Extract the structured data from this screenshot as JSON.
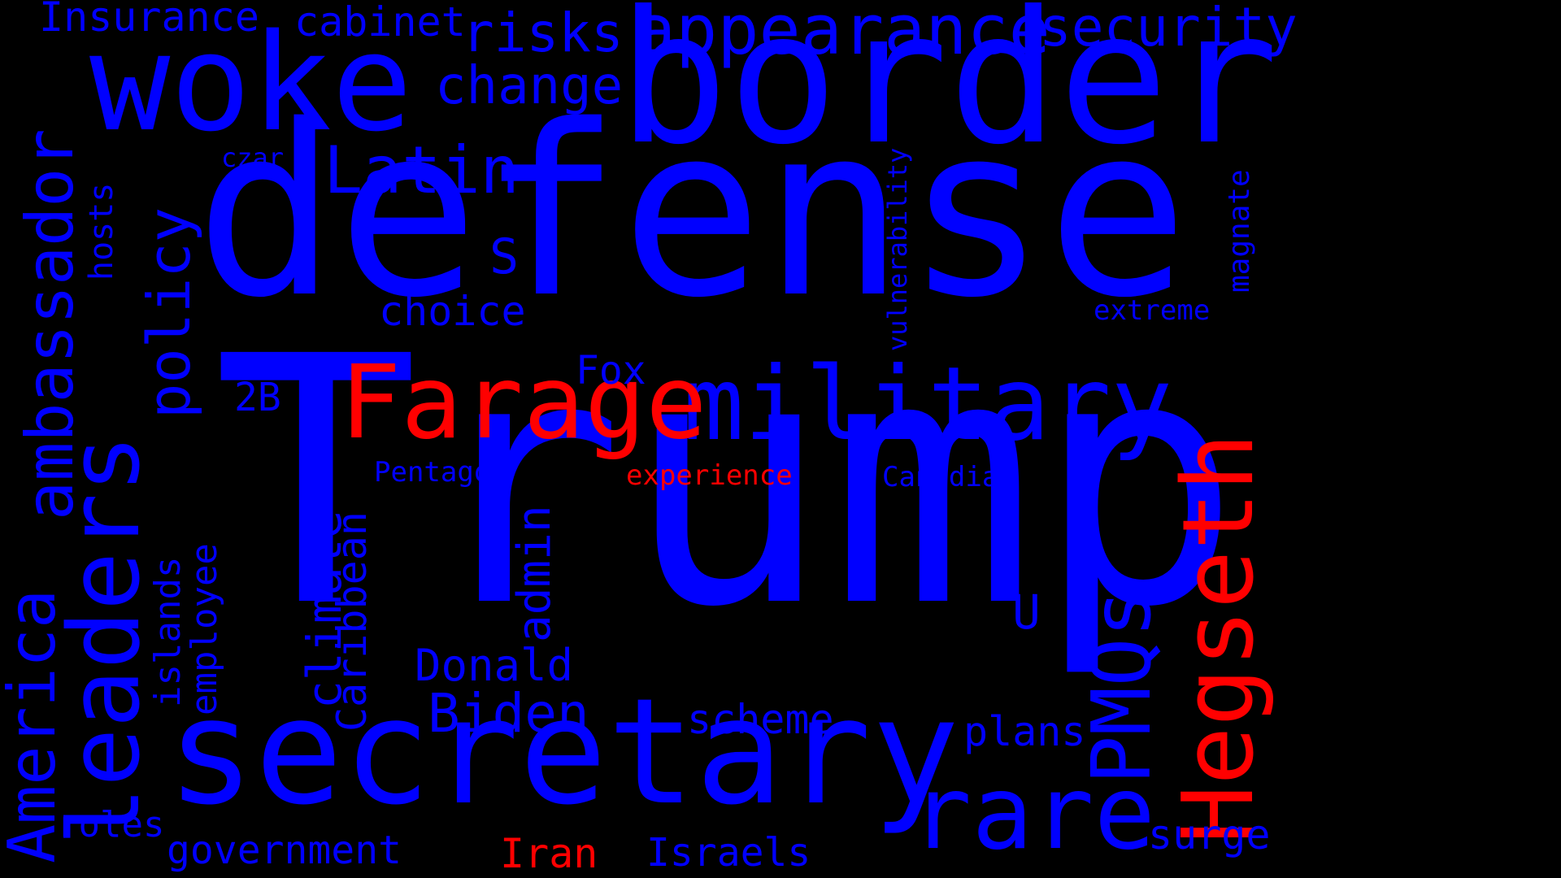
{
  "colors": {
    "background": "#000000",
    "blue": "#0000ff",
    "red": "#ff0000"
  },
  "words": [
    {
      "text": "Trump",
      "color": "blue"
    },
    {
      "text": "defense",
      "color": "blue"
    },
    {
      "text": "border",
      "color": "blue"
    },
    {
      "text": "secretary",
      "color": "blue"
    },
    {
      "text": "woke",
      "color": "blue"
    },
    {
      "text": "leaders",
      "color": "blue"
    },
    {
      "text": "military",
      "color": "blue"
    },
    {
      "text": "Farage",
      "color": "red"
    },
    {
      "text": "Hegseth",
      "color": "red"
    },
    {
      "text": "rare",
      "color": "blue"
    },
    {
      "text": "PMQs",
      "color": "blue"
    },
    {
      "text": "appearance",
      "color": "blue"
    },
    {
      "text": "America",
      "color": "blue"
    },
    {
      "text": "ambassador",
      "color": "blue"
    },
    {
      "text": "policy",
      "color": "blue"
    },
    {
      "text": "Latin",
      "color": "blue"
    },
    {
      "text": "security",
      "color": "blue"
    },
    {
      "text": "risks",
      "color": "blue"
    },
    {
      "text": "change",
      "color": "blue"
    },
    {
      "text": "Insurance",
      "color": "blue"
    },
    {
      "text": "cabinet",
      "color": "blue"
    },
    {
      "text": "climate",
      "color": "blue"
    },
    {
      "text": "Biden",
      "color": "blue"
    },
    {
      "text": "Donald",
      "color": "blue"
    },
    {
      "text": "admin",
      "color": "blue"
    },
    {
      "text": "Caribbean",
      "color": "blue"
    },
    {
      "text": "islands",
      "color": "blue"
    },
    {
      "text": "employee",
      "color": "blue"
    },
    {
      "text": "government",
      "color": "blue"
    },
    {
      "text": "Israels",
      "color": "blue"
    },
    {
      "text": "Iran",
      "color": "red"
    },
    {
      "text": "scheme",
      "color": "blue"
    },
    {
      "text": "plans",
      "color": "blue"
    },
    {
      "text": "surge",
      "color": "blue"
    },
    {
      "text": "choice",
      "color": "blue"
    },
    {
      "text": "Fox",
      "color": "blue"
    },
    {
      "text": "2B",
      "color": "blue"
    },
    {
      "text": "S",
      "color": "blue"
    },
    {
      "text": "U",
      "color": "blue"
    },
    {
      "text": "roles",
      "color": "blue"
    },
    {
      "text": "hosts",
      "color": "blue"
    },
    {
      "text": "czar",
      "color": "blue"
    },
    {
      "text": "magnate",
      "color": "blue"
    },
    {
      "text": "extreme",
      "color": "blue"
    },
    {
      "text": "vulnerability",
      "color": "blue"
    },
    {
      "text": "Pentagon",
      "color": "blue"
    },
    {
      "text": "experience",
      "color": "red"
    },
    {
      "text": "Canadian",
      "color": "blue"
    }
  ]
}
